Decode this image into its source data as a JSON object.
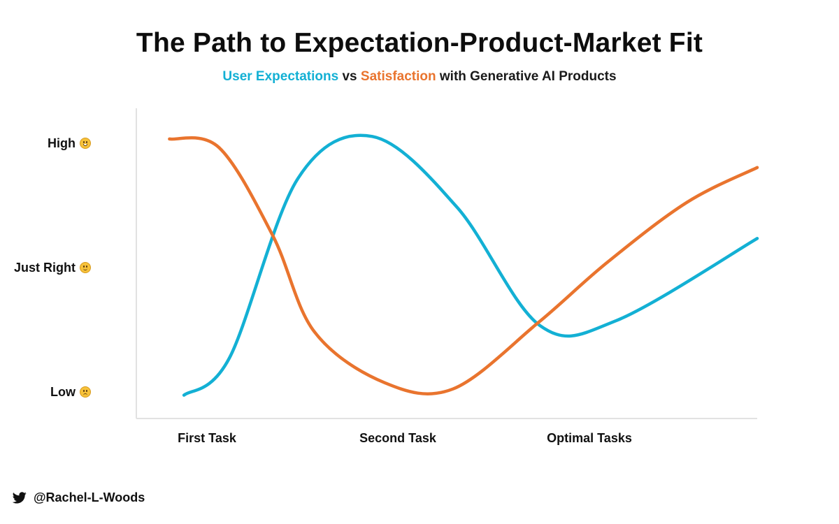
{
  "title": "The Path to Expectation-Product-Market Fit",
  "subtitle": {
    "part1": "User Expectations",
    "part2": " vs ",
    "part3": "Satisfaction",
    "part4": " with Generative AI Products"
  },
  "colors": {
    "expectations": "#13B0D4",
    "satisfaction": "#E9742E",
    "axis": "#E2E2E2"
  },
  "chart_data": {
    "type": "line",
    "title": "The Path to Expectation-Product-Market Fit",
    "subtitle": "User Expectations vs Satisfaction with Generative AI Products",
    "x_categories": [
      "First Task",
      "Second Task",
      "Optimal Tasks"
    ],
    "y_levels": [
      {
        "label": "Low",
        "icon": "frowning-face-emoji",
        "value": 0
      },
      {
        "label": "Just Right",
        "icon": "smiling-face-emoji",
        "value": 1
      },
      {
        "label": "High",
        "icon": "star-struck-emoji",
        "value": 2
      }
    ],
    "xlim": [
      0,
      3
    ],
    "ylim": [
      -0.25,
      2.2
    ],
    "grid": false,
    "legend": "none (series named in subtitle)",
    "series": [
      {
        "name": "User Expectations",
        "color": "#13B0D4",
        "points": [
          [
            0.23,
            -0.02
          ],
          [
            0.45,
            0.28
          ],
          [
            0.78,
            1.72
          ],
          [
            1.14,
            2.06
          ],
          [
            1.55,
            1.49
          ],
          [
            1.95,
            0.54
          ],
          [
            2.32,
            0.58
          ],
          [
            3.0,
            1.24
          ]
        ]
      },
      {
        "name": "Satisfaction",
        "color": "#E9742E",
        "points": [
          [
            0.16,
            2.04
          ],
          [
            0.4,
            1.97
          ],
          [
            0.66,
            1.26
          ],
          [
            0.86,
            0.49
          ],
          [
            1.2,
            0.08
          ],
          [
            1.53,
            0.03
          ],
          [
            1.94,
            0.56
          ],
          [
            2.27,
            1.04
          ],
          [
            2.66,
            1.53
          ],
          [
            3.0,
            1.81
          ]
        ]
      }
    ]
  },
  "footer": {
    "icon": "twitter-bird-icon",
    "handle": "@Rachel-L-Woods"
  }
}
